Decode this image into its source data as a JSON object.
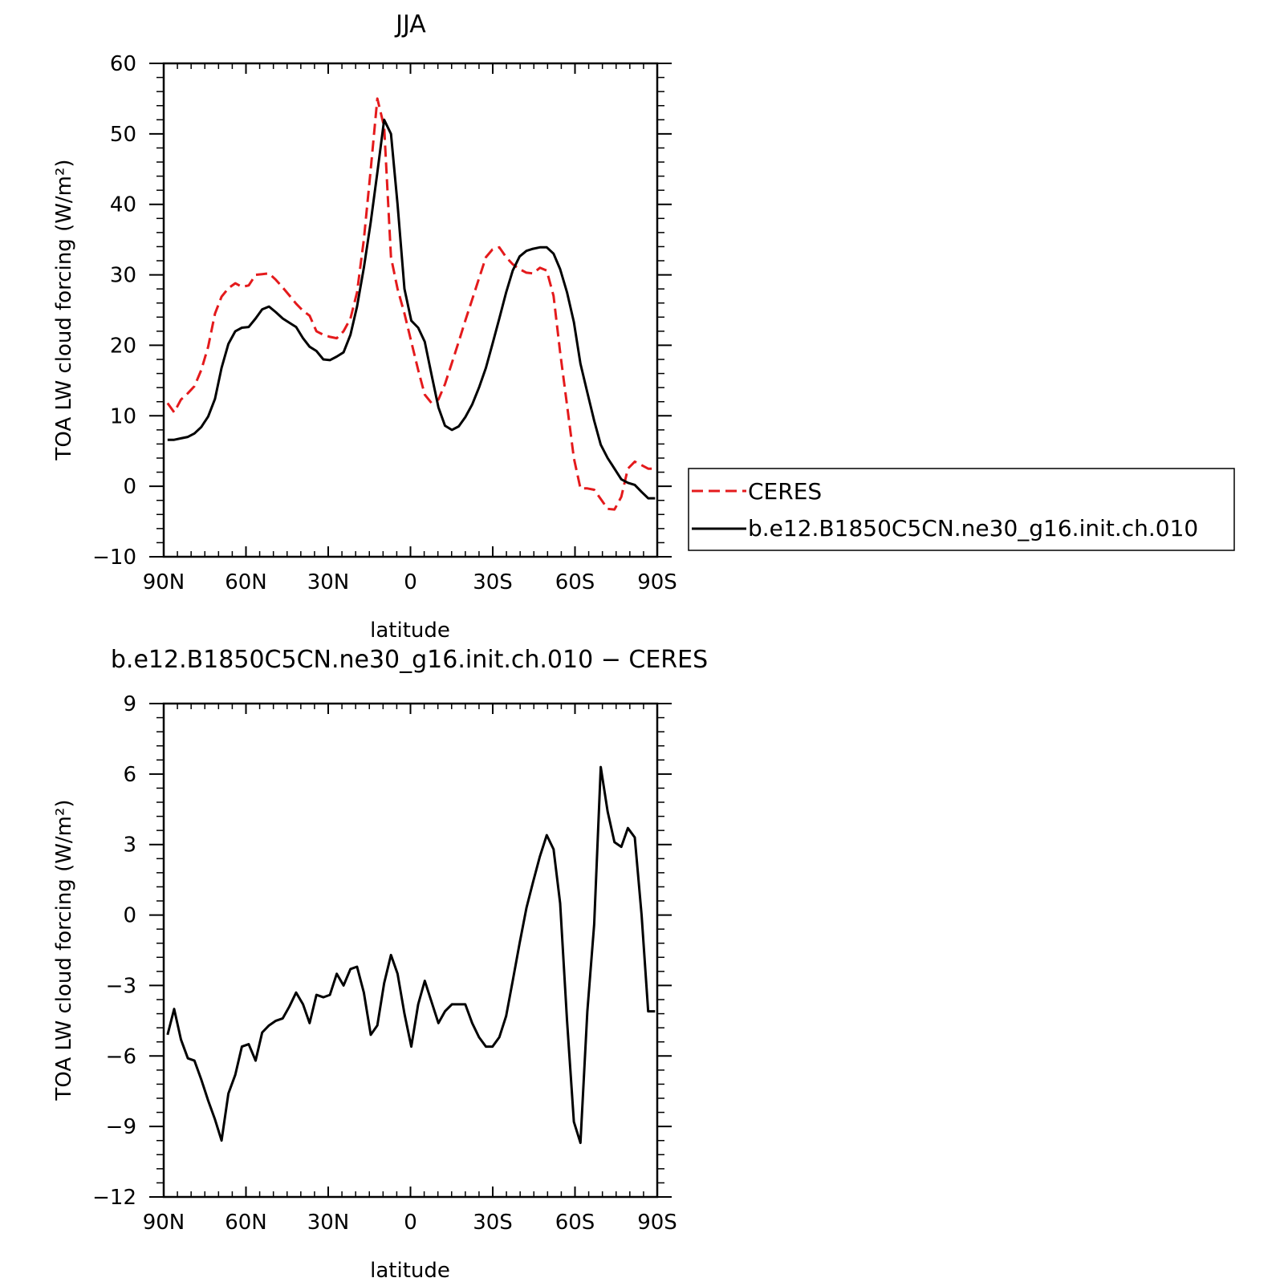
{
  "colors": {
    "ceres": "#e41a1c",
    "model": "#000000"
  },
  "chart_data": [
    {
      "type": "line",
      "title": "JJA",
      "xlabel": "latitude",
      "ylabel": "TOA LW cloud forcing (W/m²)",
      "xlim": [
        90,
        -90
      ],
      "ylim": [
        -10,
        60
      ],
      "xtick_values": [
        90,
        60,
        30,
        0,
        -30,
        -60,
        -90
      ],
      "xtick_labels": [
        "90N",
        "60N",
        "30N",
        "0",
        "30S",
        "60S",
        "90S"
      ],
      "ytick_values": [
        -10,
        0,
        10,
        20,
        30,
        40,
        50,
        60
      ],
      "ytick_labels": [
        "−10",
        "0",
        "10",
        "20",
        "30",
        "40",
        "50",
        "60"
      ],
      "grid": false,
      "legend_position": "right",
      "series": [
        {
          "name": "CERES",
          "style": "dashed",
          "color": "#e41a1c",
          "x": [
            88.6,
            86.2,
            83.7,
            81.2,
            78.8,
            76.3,
            73.8,
            71.3,
            68.9,
            66.4,
            63.9,
            61.5,
            59.0,
            56.5,
            54.1,
            51.6,
            49.1,
            46.6,
            44.2,
            41.7,
            39.2,
            36.8,
            34.3,
            31.8,
            29.4,
            26.9,
            24.4,
            21.9,
            19.5,
            17.0,
            14.5,
            12.1,
            9.6,
            7.1,
            4.7,
            2.2,
            -0.3,
            -2.8,
            -5.2,
            -7.7,
            -10.2,
            -12.6,
            -15.1,
            -17.6,
            -20.0,
            -22.5,
            -25.0,
            -27.5,
            -29.9,
            -32.4,
            -34.9,
            -37.3,
            -39.8,
            -42.3,
            -44.7,
            -47.2,
            -49.7,
            -52.2,
            -54.6,
            -57.1,
            -59.6,
            -62.0,
            -64.5,
            -67.0,
            -69.4,
            -71.9,
            -74.4,
            -76.9,
            -79.3,
            -81.8,
            -84.3,
            -86.7,
            -89.2
          ],
          "values": [
            11.8,
            10.5,
            12.3,
            13.2,
            14.2,
            16.5,
            19.8,
            24.5,
            26.9,
            28.1,
            28.8,
            28.3,
            28.5,
            30.0,
            30.1,
            30.2,
            29.3,
            28.2,
            27.1,
            25.9,
            24.9,
            24.2,
            22.0,
            21.5,
            21.2,
            21.0,
            22.0,
            23.8,
            27.5,
            35.0,
            45.0,
            55.0,
            51.0,
            32.5,
            28.0,
            24.5,
            20.5,
            16.5,
            13.0,
            11.8,
            12.3,
            14.5,
            17.5,
            20.5,
            23.5,
            26.5,
            29.5,
            32.5,
            33.6,
            33.9,
            32.5,
            31.5,
            30.8,
            30.3,
            30.2,
            31.0,
            30.6,
            27.0,
            19.0,
            11.5,
            4.0,
            -0.3,
            -0.3,
            -0.5,
            -1.8,
            -3.2,
            -3.3,
            -1.5,
            2.5,
            3.5,
            3.0,
            2.5,
            2.5
          ]
        },
        {
          "name": "b.e12.B1850C5CN.ne30_g16.init.ch.010",
          "style": "solid",
          "color": "#000000",
          "x": [
            88.6,
            86.2,
            83.7,
            81.2,
            78.8,
            76.3,
            73.8,
            71.3,
            68.9,
            66.4,
            63.9,
            61.5,
            59.0,
            56.5,
            54.1,
            51.6,
            49.1,
            46.6,
            44.2,
            41.7,
            39.2,
            36.8,
            34.3,
            31.8,
            29.4,
            26.9,
            24.4,
            21.9,
            19.5,
            17.0,
            14.5,
            12.1,
            9.6,
            7.1,
            4.7,
            2.2,
            -0.3,
            -2.8,
            -5.2,
            -7.7,
            -10.2,
            -12.6,
            -15.1,
            -17.6,
            -20.0,
            -22.5,
            -25.0,
            -27.5,
            -29.9,
            -32.4,
            -34.9,
            -37.3,
            -39.8,
            -42.3,
            -44.7,
            -47.2,
            -49.7,
            -52.2,
            -54.6,
            -57.1,
            -59.6,
            -62.0,
            -64.5,
            -67.0,
            -69.4,
            -71.9,
            -74.4,
            -76.9,
            -79.3,
            -81.8,
            -84.3,
            -86.7,
            -89.2
          ],
          "values": [
            6.6,
            6.6,
            6.8,
            7.0,
            7.5,
            8.4,
            9.9,
            12.4,
            16.8,
            20.2,
            22.0,
            22.5,
            22.6,
            23.8,
            25.1,
            25.5,
            24.7,
            23.8,
            23.2,
            22.6,
            21.0,
            19.8,
            19.2,
            18.0,
            17.9,
            18.4,
            19.0,
            21.5,
            25.5,
            31.0,
            37.5,
            44.5,
            52.0,
            50.0,
            40.0,
            28.0,
            23.5,
            22.5,
            20.5,
            15.8,
            11.2,
            8.6,
            8.0,
            8.5,
            9.8,
            11.6,
            14.0,
            16.8,
            20.2,
            23.8,
            27.5,
            30.6,
            32.6,
            33.4,
            33.7,
            33.9,
            33.9,
            33.0,
            30.8,
            27.5,
            23.3,
            17.4,
            13.3,
            9.3,
            5.9,
            4.0,
            2.5,
            1.0,
            0.5,
            0.2,
            -0.8,
            -1.7,
            -1.7
          ]
        }
      ]
    },
    {
      "type": "line",
      "title": "b.e12.B1850C5CN.ne30_g16.init.ch.010 − CERES",
      "xlabel": "latitude",
      "ylabel": "TOA LW cloud forcing (W/m²)",
      "xlim": [
        90,
        -90
      ],
      "ylim": [
        -12,
        9
      ],
      "xtick_values": [
        90,
        60,
        30,
        0,
        -30,
        -60,
        -90
      ],
      "xtick_labels": [
        "90N",
        "60N",
        "30N",
        "0",
        "30S",
        "60S",
        "90S"
      ],
      "ytick_values": [
        -12,
        -9,
        -6,
        -3,
        0,
        3,
        6,
        9
      ],
      "ytick_labels": [
        "−12",
        "−9",
        "−6",
        "−3",
        "0",
        "3",
        "6",
        "9"
      ],
      "grid": false,
      "series": [
        {
          "style": "solid",
          "color": "#000000",
          "x": [
            88.6,
            86.2,
            83.7,
            81.2,
            78.8,
            76.3,
            73.8,
            71.3,
            68.9,
            66.4,
            63.9,
            61.5,
            59.0,
            56.5,
            54.1,
            51.6,
            49.1,
            46.6,
            44.2,
            41.7,
            39.2,
            36.8,
            34.3,
            31.8,
            29.4,
            26.9,
            24.4,
            21.9,
            19.5,
            17.0,
            14.5,
            12.1,
            9.6,
            7.1,
            4.7,
            2.2,
            -0.3,
            -2.8,
            -5.2,
            -7.7,
            -10.2,
            -12.6,
            -15.1,
            -17.6,
            -20.0,
            -22.5,
            -25.0,
            -27.5,
            -29.9,
            -32.4,
            -34.9,
            -37.3,
            -39.8,
            -42.3,
            -44.7,
            -47.2,
            -49.7,
            -52.2,
            -54.6,
            -57.1,
            -59.6,
            -62.0,
            -64.5,
            -67.0,
            -69.4,
            -71.9,
            -74.4,
            -76.9,
            -79.3,
            -81.8,
            -84.3,
            -86.7,
            -89.2
          ],
          "values": [
            -5.1,
            -4.0,
            -5.3,
            -6.1,
            -6.2,
            -7.0,
            -7.9,
            -8.7,
            -9.6,
            -7.6,
            -6.8,
            -5.6,
            -5.5,
            -6.2,
            -5.0,
            -4.7,
            -4.5,
            -4.4,
            -3.9,
            -3.3,
            -3.8,
            -4.6,
            -3.4,
            -3.5,
            -3.4,
            -2.5,
            -3.0,
            -2.3,
            -2.2,
            -3.3,
            -5.1,
            -4.7,
            -2.9,
            -1.7,
            -2.5,
            -4.2,
            -5.6,
            -3.8,
            -2.8,
            -3.7,
            -4.6,
            -4.1,
            -3.8,
            -3.8,
            -3.8,
            -4.6,
            -5.2,
            -5.6,
            -5.6,
            -5.2,
            -4.3,
            -2.8,
            -1.2,
            0.3,
            1.4,
            2.5,
            3.4,
            2.8,
            0.5,
            -4.5,
            -8.8,
            -9.7,
            -4.1,
            -0.4,
            6.3,
            4.4,
            3.1,
            2.9,
            3.7,
            3.3,
            0.0,
            -4.1,
            -4.1
          ]
        }
      ]
    }
  ]
}
